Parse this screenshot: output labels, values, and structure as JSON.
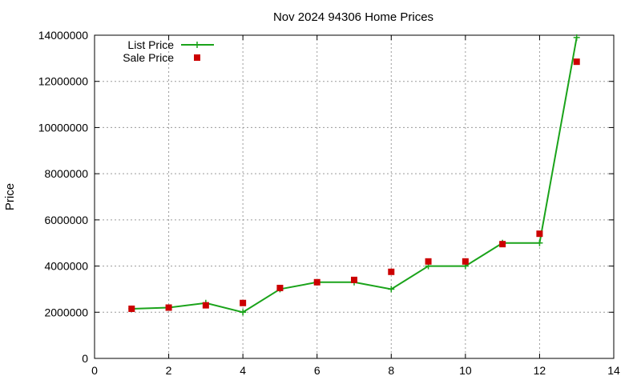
{
  "chart_data": {
    "type": "line",
    "title": "Nov 2024 94306 Home Prices",
    "xlabel": "",
    "ylabel": "Price",
    "xlim": [
      0,
      14
    ],
    "ylim": [
      0,
      14000000
    ],
    "x_ticks": [
      0,
      2,
      4,
      6,
      8,
      10,
      12,
      14
    ],
    "y_ticks": [
      0,
      2000000,
      4000000,
      6000000,
      8000000,
      10000000,
      12000000,
      14000000
    ],
    "grid": true,
    "legend_position": "top-left",
    "series": [
      {
        "name": "List Price",
        "style": "line-with-plus-markers",
        "color": "#1aa31a",
        "x": [
          1,
          2,
          3,
          4,
          5,
          6,
          7,
          8,
          9,
          10,
          11,
          12,
          13
        ],
        "y": [
          2150000,
          2200000,
          2400000,
          2000000,
          3000000,
          3300000,
          3300000,
          3000000,
          4000000,
          4000000,
          5000000,
          5000000,
          13900000
        ]
      },
      {
        "name": "Sale Price",
        "style": "square-markers",
        "color": "#cc0000",
        "x": [
          1,
          2,
          3,
          4,
          5,
          6,
          7,
          8,
          9,
          10,
          11,
          12,
          13
        ],
        "y": [
          2150000,
          2200000,
          2300000,
          2400000,
          3050000,
          3300000,
          3400000,
          3750000,
          4200000,
          4200000,
          4950000,
          5400000,
          12850000
        ]
      }
    ]
  }
}
